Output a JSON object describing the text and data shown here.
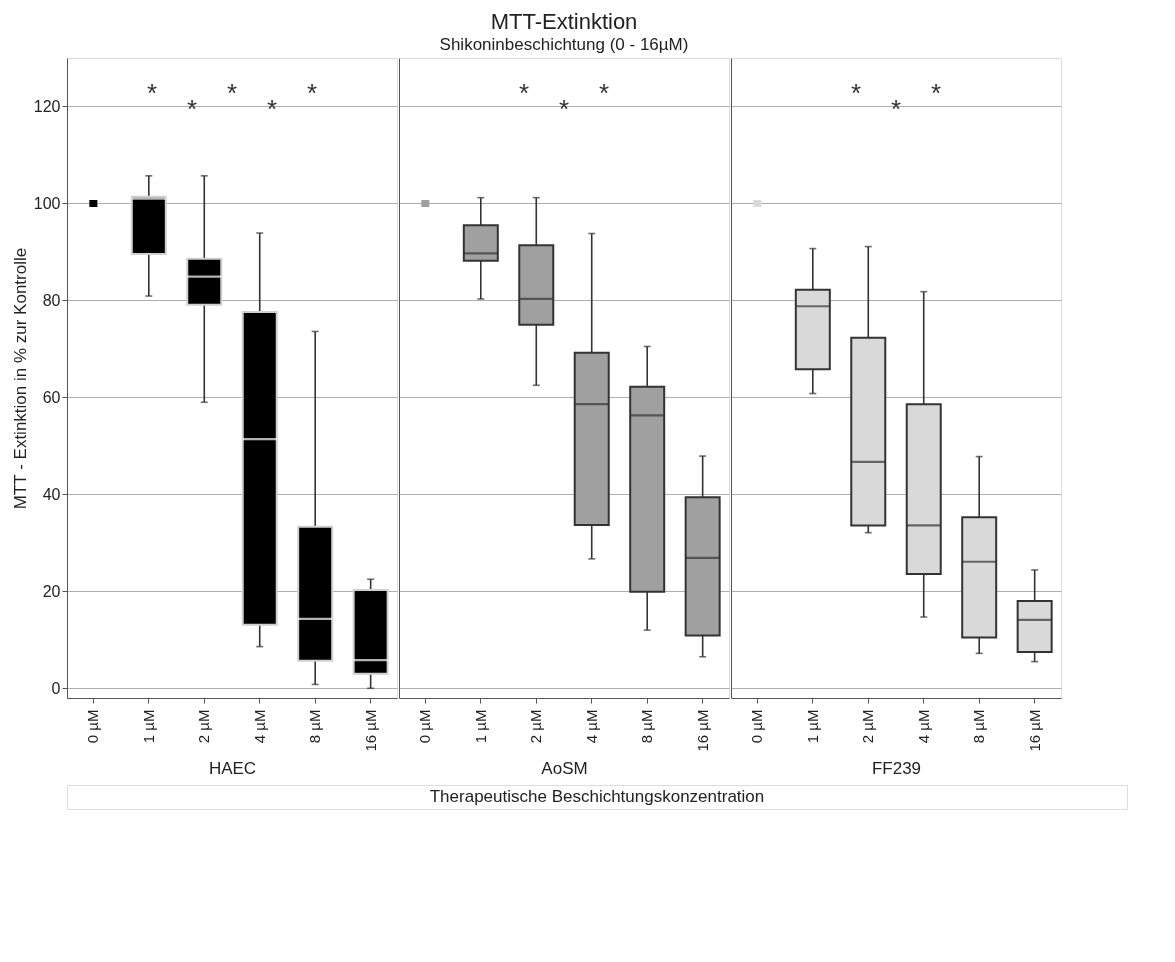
{
  "chart_data": [
    {
      "type": "box",
      "ylabel": "MTT - Extinktion in % zur Kontrolle",
      "xlabel": "HAEC",
      "categories": [
        "0 µM",
        "1 µM",
        "2 µM",
        "4 µM",
        "8 µM",
        "16 µM"
      ],
      "ylim": [
        -2,
        130
      ],
      "yticks": [
        0,
        20,
        40,
        60,
        80,
        100,
        120
      ],
      "grid": "y",
      "series": [
        {
          "color": "#000000",
          "boxes": [
            {
              "low": 100,
              "q1": 100,
              "median": 100,
              "q3": 100,
              "high": 100
            },
            {
              "low": 80.9,
              "q1": 89.6,
              "median": 101,
              "q3": 101.4,
              "high": 105.7
            },
            {
              "low": 59,
              "q1": 79.1,
              "median": 84.9,
              "q3": 88.6,
              "high": 105.7
            },
            {
              "low": 8.6,
              "q1": 13.1,
              "median": 51.4,
              "q3": 77.6,
              "high": 93.9
            },
            {
              "low": 0.8,
              "q1": 5.7,
              "median": 14.3,
              "q3": 33.3,
              "high": 73.6
            },
            {
              "low": 0,
              "q1": 3,
              "median": 5.8,
              "q3": 20.3,
              "high": 22.5
            }
          ]
        }
      ],
      "annotations": [
        "*",
        "*",
        "*",
        "*",
        "*"
      ]
    },
    {
      "type": "box",
      "title": "MTT-Extinktion",
      "subtitle": "Shikoninbeschichtung (0 - 16µM)",
      "xlabel": "AoSM",
      "categories": [
        "0 µM",
        "1 µM",
        "2 µM",
        "4 µM",
        "8 µM",
        "16 µM"
      ],
      "ylim": [
        -2,
        130
      ],
      "yticks": [
        0,
        20,
        40,
        60,
        80,
        100,
        120
      ],
      "grid": "y",
      "tick_labels": "x",
      "series": [
        {
          "color": "#a0a0a0",
          "boxes": [
            {
              "low": 100,
              "q1": 100,
              "median": 100,
              "q3": 100,
              "high": 100
            },
            {
              "low": 80.3,
              "q1": 88.2,
              "median": 89.7,
              "q3": 95.5,
              "high": 101.2
            },
            {
              "low": 62.5,
              "q1": 75,
              "median": 80.3,
              "q3": 91.4,
              "high": 101.2
            },
            {
              "low": 26.7,
              "q1": 33.7,
              "median": 58.6,
              "q3": 69.2,
              "high": 93.8
            },
            {
              "low": 12,
              "q1": 19.9,
              "median": 56.3,
              "q3": 62.2,
              "high": 70.5
            },
            {
              "low": 6.5,
              "q1": 10.9,
              "median": 26.9,
              "q3": 39.4,
              "high": 47.9
            }
          ]
        }
      ],
      "annotations": [
        "*",
        "*",
        "*",
        "Therapeutische Beschichtungskonzentration"
      ]
    },
    {
      "type": "box",
      "xlabel": "FF239",
      "categories": [
        "0 µM",
        "1 µM",
        "2 µM",
        "4 µM",
        "8 µM",
        "16 µM"
      ],
      "ylim": [
        -2,
        130
      ],
      "yticks": [
        0,
        20,
        40,
        60,
        80,
        100,
        120
      ],
      "grid": "y",
      "tick_labels": "x",
      "series": [
        {
          "color": "#d9d9d9",
          "boxes": [
            {
              "low": 100,
              "q1": 100,
              "median": 100,
              "q3": 100,
              "high": 100
            },
            {
              "low": 60.8,
              "q1": 65.8,
              "median": 78.8,
              "q3": 82.2,
              "high": 90.7
            },
            {
              "low": 32.1,
              "q1": 33.6,
              "median": 46.7,
              "q3": 72.3,
              "high": 91.1
            },
            {
              "low": 14.7,
              "q1": 23.6,
              "median": 33.6,
              "q3": 58.6,
              "high": 81.8
            },
            {
              "low": 7.2,
              "q1": 10.5,
              "median": 26.1,
              "q3": 35.3,
              "high": 47.8
            },
            {
              "low": 5.5,
              "q1": 7.5,
              "median": 14.1,
              "q3": 18,
              "high": 24.4
            }
          ]
        }
      ],
      "annotations": [
        "*",
        "*",
        "*"
      ]
    }
  ]
}
